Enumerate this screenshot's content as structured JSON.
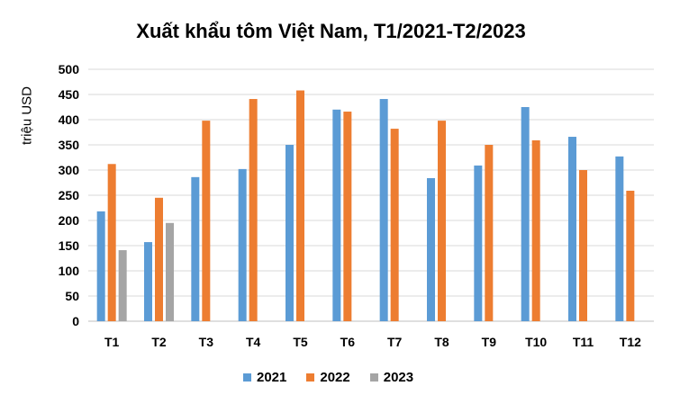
{
  "chart_data": {
    "type": "bar",
    "title": "Xuất khẩu tôm Việt Nam, T1/2021-T2/2023",
    "xlabel": "",
    "ylabel": "triệu USD",
    "ylim": [
      0,
      500
    ],
    "yticks": [
      "0",
      "50",
      "100",
      "150",
      "200",
      "250",
      "300",
      "350",
      "400",
      "450",
      "500"
    ],
    "ytick_values": [
      0,
      50,
      100,
      150,
      200,
      250,
      300,
      350,
      400,
      450,
      500
    ],
    "grid": true,
    "legend_position": "bottom",
    "categories": [
      "T1",
      "T2",
      "T3",
      "T4",
      "T5",
      "T6",
      "T7",
      "T8",
      "T9",
      "T10",
      "T11",
      "T12"
    ],
    "series": [
      {
        "name": "2021",
        "color": "#5b9bd5",
        "values": [
          218,
          157,
          286,
          302,
          350,
          420,
          441,
          284,
          309,
          425,
          366,
          327
        ]
      },
      {
        "name": "2022",
        "color": "#ed7d31",
        "values": [
          312,
          245,
          398,
          441,
          458,
          416,
          382,
          398,
          350,
          359,
          300,
          259
        ]
      },
      {
        "name": "2023",
        "color": "#a5a5a5",
        "values": [
          141,
          195,
          null,
          null,
          null,
          null,
          null,
          null,
          null,
          null,
          null,
          null
        ]
      }
    ]
  }
}
